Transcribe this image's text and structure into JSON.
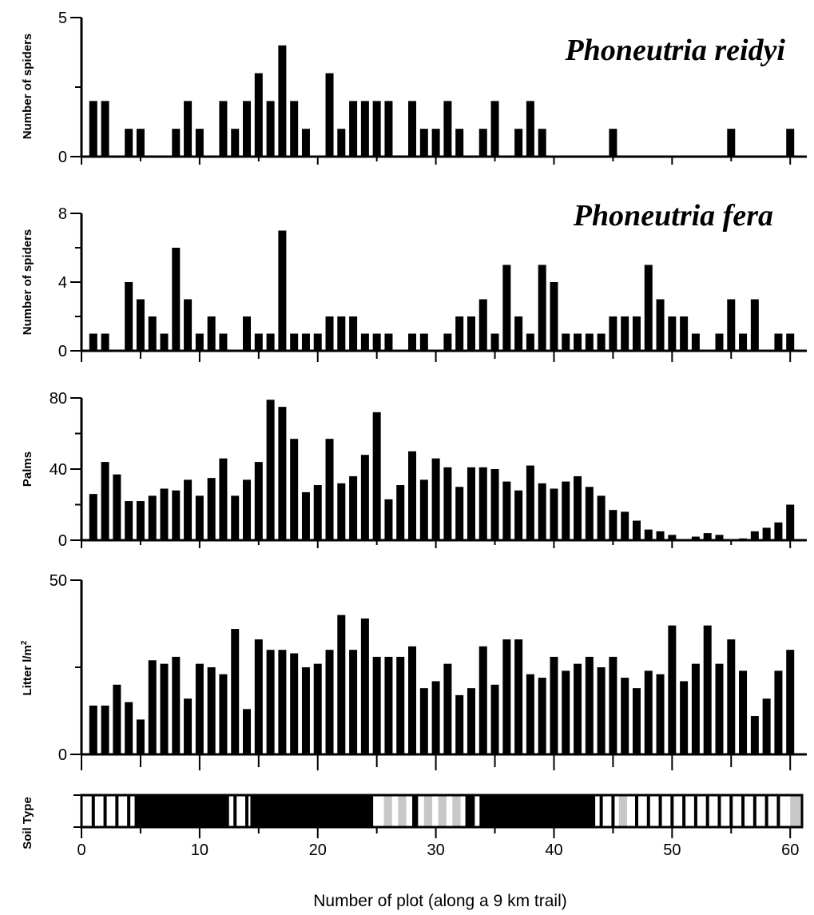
{
  "chart_data": [
    {
      "id": "reidyi",
      "type": "bar",
      "title": "Phoneutria reidyi",
      "ylabel": "Number of spiders",
      "ylim": [
        0,
        5
      ],
      "y_tick_labels": [
        "0",
        "5"
      ],
      "x": [
        1,
        2,
        4,
        5,
        8,
        9,
        10,
        12,
        13,
        14,
        15,
        16,
        17,
        18,
        19,
        21,
        22,
        23,
        24,
        25,
        26,
        28,
        29,
        30,
        31,
        32,
        34,
        35,
        37,
        38,
        39,
        45,
        55,
        60
      ],
      "values": [
        2,
        2,
        1,
        1,
        1,
        2,
        1,
        2,
        1,
        2,
        3,
        2,
        4,
        2,
        1,
        3,
        1,
        2,
        2,
        2,
        2,
        2,
        1,
        1,
        2,
        1,
        1,
        2,
        1,
        2,
        1,
        1,
        1,
        1
      ]
    },
    {
      "id": "fera",
      "type": "bar",
      "title": "Phoneutria fera",
      "ylabel": "Number of spiders",
      "ylim": [
        0,
        8
      ],
      "y_tick_labels": [
        "0",
        "4",
        "8"
      ],
      "x": [
        1,
        2,
        4,
        5,
        6,
        7,
        8,
        9,
        10,
        11,
        12,
        14,
        15,
        16,
        17,
        18,
        19,
        20,
        21,
        22,
        23,
        24,
        25,
        26,
        28,
        29,
        31,
        32,
        33,
        34,
        35,
        36,
        37,
        38,
        39,
        40,
        41,
        42,
        43,
        44,
        45,
        46,
        47,
        48,
        49,
        50,
        51,
        52,
        54,
        55,
        56,
        57,
        59,
        60
      ],
      "values": [
        1,
        1,
        4,
        3,
        2,
        1,
        6,
        3,
        1,
        2,
        1,
        2,
        1,
        1,
        7,
        1,
        1,
        1,
        2,
        2,
        2,
        1,
        1,
        1,
        1,
        1,
        1,
        2,
        2,
        3,
        1,
        5,
        2,
        1,
        5,
        4,
        1,
        1,
        1,
        1,
        2,
        2,
        2,
        5,
        3,
        2,
        2,
        1,
        1,
        3,
        1,
        3,
        1,
        1
      ]
    },
    {
      "id": "palms",
      "type": "bar",
      "ylabel": "Palms",
      "ylim": [
        0,
        80
      ],
      "y_tick_labels": [
        "0",
        "40",
        "80"
      ],
      "x": [
        1,
        2,
        3,
        4,
        5,
        6,
        7,
        8,
        9,
        10,
        11,
        12,
        13,
        14,
        15,
        16,
        17,
        18,
        19,
        20,
        21,
        22,
        23,
        24,
        25,
        26,
        27,
        28,
        29,
        30,
        31,
        32,
        33,
        34,
        35,
        36,
        37,
        38,
        39,
        40,
        41,
        42,
        43,
        44,
        45,
        46,
        47,
        48,
        49,
        50,
        52,
        53,
        54,
        56,
        57,
        58,
        59,
        60
      ],
      "values": [
        26,
        44,
        37,
        22,
        22,
        25,
        29,
        28,
        34,
        25,
        35,
        46,
        25,
        34,
        44,
        79,
        75,
        57,
        27,
        31,
        57,
        32,
        36,
        48,
        72,
        23,
        31,
        50,
        34,
        46,
        41,
        30,
        41,
        41,
        40,
        33,
        28,
        42,
        32,
        29,
        33,
        36,
        30,
        25,
        17,
        16,
        11,
        6,
        5,
        3,
        2,
        4,
        3,
        1,
        5,
        7,
        10,
        20
      ]
    },
    {
      "id": "litter",
      "type": "bar",
      "ylabel": "Litter l/m",
      "ylabel_superscript": "2",
      "ylim": [
        0,
        50
      ],
      "y_tick_labels": [
        "0",
        "50"
      ],
      "x": [
        1,
        2,
        3,
        4,
        5,
        6,
        7,
        8,
        9,
        10,
        11,
        12,
        13,
        14,
        15,
        16,
        17,
        18,
        19,
        20,
        21,
        22,
        23,
        24,
        25,
        26,
        27,
        28,
        29,
        30,
        31,
        32,
        33,
        34,
        35,
        36,
        37,
        38,
        39,
        40,
        41,
        42,
        43,
        44,
        45,
        46,
        47,
        48,
        49,
        50,
        51,
        52,
        53,
        54,
        55,
        56,
        57,
        58,
        59,
        60
      ],
      "values": [
        14,
        14,
        20,
        15,
        10,
        27,
        26,
        28,
        16,
        26,
        25,
        23,
        36,
        13,
        33,
        30,
        30,
        29,
        25,
        26,
        30,
        40,
        30,
        39,
        28,
        28,
        28,
        31,
        19,
        21,
        26,
        17,
        19,
        31,
        20,
        33,
        33,
        23,
        22,
        28,
        24,
        26,
        28,
        25,
        28,
        22,
        19,
        24,
        23,
        37,
        21,
        26,
        37,
        26,
        33,
        24,
        11,
        16,
        24,
        30
      ]
    },
    {
      "id": "soil",
      "type": "heatmap",
      "ylabel": "Soil Type",
      "xlabel": "Number of plot (along a 9 km trail)",
      "xlim": [
        0,
        61
      ],
      "x_tick_labels": [
        "0",
        "10",
        "20",
        "30",
        "40",
        "50",
        "60"
      ],
      "segments": [
        {
          "from": 0,
          "to": 0.5,
          "class": "white"
        },
        {
          "from": 0.5,
          "to": 4.5,
          "class": "white-striped"
        },
        {
          "from": 4.5,
          "to": 12.5,
          "class": "black"
        },
        {
          "from": 12.5,
          "to": 14.3,
          "class": "white-striped"
        },
        {
          "from": 14.3,
          "to": 24.7,
          "class": "black"
        },
        {
          "from": 24.7,
          "to": 25.6,
          "class": "white"
        },
        {
          "from": 25.6,
          "to": 26.3,
          "class": "grey"
        },
        {
          "from": 26.3,
          "to": 26.8,
          "class": "white"
        },
        {
          "from": 26.8,
          "to": 27.5,
          "class": "grey"
        },
        {
          "from": 27.5,
          "to": 28,
          "class": "white"
        },
        {
          "from": 28,
          "to": 28.5,
          "class": "black"
        },
        {
          "from": 28.5,
          "to": 29,
          "class": "white"
        },
        {
          "from": 29,
          "to": 29.7,
          "class": "grey"
        },
        {
          "from": 29.7,
          "to": 30.2,
          "class": "white"
        },
        {
          "from": 30.2,
          "to": 30.9,
          "class": "grey"
        },
        {
          "from": 30.9,
          "to": 31.4,
          "class": "white"
        },
        {
          "from": 31.4,
          "to": 32.1,
          "class": "grey"
        },
        {
          "from": 32.1,
          "to": 32.5,
          "class": "white"
        },
        {
          "from": 32.5,
          "to": 33.3,
          "class": "black"
        },
        {
          "from": 33.3,
          "to": 33.7,
          "class": "white"
        },
        {
          "from": 33.7,
          "to": 43.5,
          "class": "black"
        },
        {
          "from": 43.5,
          "to": 45.5,
          "class": "white-striped"
        },
        {
          "from": 45.5,
          "to": 46.2,
          "class": "grey"
        },
        {
          "from": 46.2,
          "to": 60,
          "class": "white-striped"
        },
        {
          "from": 60,
          "to": 61,
          "class": "grey"
        }
      ]
    }
  ]
}
